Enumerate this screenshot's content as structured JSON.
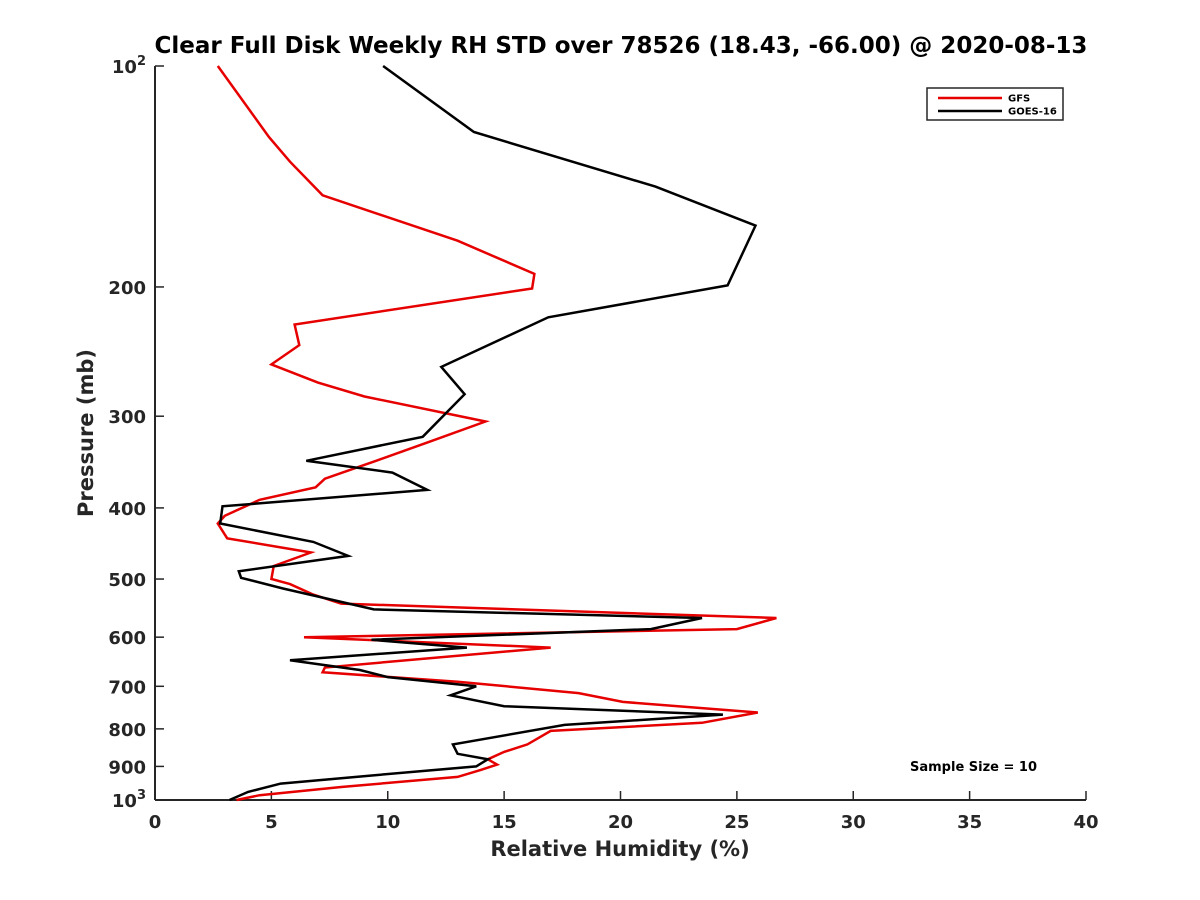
{
  "chart_data": {
    "type": "line",
    "title": "Clear Full Disk Weekly RH STD over 78526 (18.43, -66.00) @ 2020-08-13",
    "xlabel": "Relative Humidity (%)",
    "ylabel": "Pressure (mb)",
    "xlim": [
      0,
      40
    ],
    "ylim": [
      100,
      1000
    ],
    "yscale": "log",
    "y_reversed": true,
    "grid": false,
    "legend_position": "top-right",
    "x_ticks": [
      "0",
      "5",
      "10",
      "15",
      "20",
      "25",
      "30",
      "35",
      "40"
    ],
    "y_ticks": [
      {
        "value": 100,
        "base": "10",
        "exp": "2"
      },
      {
        "value": 200,
        "label": "200"
      },
      {
        "value": 300,
        "label": "300"
      },
      {
        "value": 400,
        "label": "400"
      },
      {
        "value": 500,
        "label": "500"
      },
      {
        "value": 600,
        "label": "600"
      },
      {
        "value": 700,
        "label": "700"
      },
      {
        "value": 800,
        "label": "800"
      },
      {
        "value": 900,
        "label": "900"
      },
      {
        "value": 1000,
        "base": "10",
        "exp": "3"
      }
    ],
    "annotation": "Sample Size = 10",
    "series": [
      {
        "name": "GFS",
        "color": "#e60000",
        "points": [
          [
            2.7,
            100
          ],
          [
            4.9,
            125
          ],
          [
            5.8,
            135
          ],
          [
            7.2,
            150
          ],
          [
            13.0,
            173
          ],
          [
            16.3,
            192
          ],
          [
            16.2,
            201
          ],
          [
            6.0,
            225
          ],
          [
            6.2,
            240
          ],
          [
            5.0,
            255
          ],
          [
            7.0,
            270
          ],
          [
            9.0,
            282
          ],
          [
            14.2,
            305
          ],
          [
            11.8,
            325
          ],
          [
            9.5,
            345
          ],
          [
            7.3,
            365
          ],
          [
            6.9,
            375
          ],
          [
            4.5,
            390
          ],
          [
            3.0,
            410
          ],
          [
            2.7,
            420
          ],
          [
            3.1,
            440
          ],
          [
            6.7,
            460
          ],
          [
            5.1,
            480
          ],
          [
            5.0,
            500
          ],
          [
            5.8,
            508
          ],
          [
            6.8,
            525
          ],
          [
            8.0,
            540
          ],
          [
            26.7,
            565
          ],
          [
            25.0,
            585
          ],
          [
            6.4,
            600
          ],
          [
            17.0,
            620
          ],
          [
            7.3,
            660
          ],
          [
            7.2,
            670
          ],
          [
            13.0,
            690
          ],
          [
            18.2,
            715
          ],
          [
            20.1,
            735
          ],
          [
            25.9,
            760
          ],
          [
            23.5,
            785
          ],
          [
            17.0,
            805
          ],
          [
            16.0,
            840
          ],
          [
            15.0,
            860
          ],
          [
            14.3,
            880
          ],
          [
            14.7,
            895
          ],
          [
            14.0,
            910
          ],
          [
            13.0,
            930
          ],
          [
            8.0,
            960
          ],
          [
            4.5,
            985
          ],
          [
            3.5,
            1000
          ]
        ]
      },
      {
        "name": "GOES-16",
        "color": "#000000",
        "points": [
          [
            9.8,
            100
          ],
          [
            13.7,
            123
          ],
          [
            21.5,
            146
          ],
          [
            25.8,
            165
          ],
          [
            24.6,
            199
          ],
          [
            16.9,
            220
          ],
          [
            12.3,
            257
          ],
          [
            13.3,
            280
          ],
          [
            11.5,
            320
          ],
          [
            6.5,
            345
          ],
          [
            10.2,
            358
          ],
          [
            11.7,
            378
          ],
          [
            2.9,
            398
          ],
          [
            2.8,
            420
          ],
          [
            6.8,
            445
          ],
          [
            8.3,
            465
          ],
          [
            3.6,
            488
          ],
          [
            3.7,
            498
          ],
          [
            5.5,
            515
          ],
          [
            9.4,
            550
          ],
          [
            23.5,
            565
          ],
          [
            21.3,
            585
          ],
          [
            9.3,
            605
          ],
          [
            13.4,
            620
          ],
          [
            5.8,
            645
          ],
          [
            8.8,
            665
          ],
          [
            10.0,
            680
          ],
          [
            13.8,
            700
          ],
          [
            12.7,
            720
          ],
          [
            15.0,
            745
          ],
          [
            24.4,
            765
          ],
          [
            17.6,
            790
          ],
          [
            12.8,
            840
          ],
          [
            13.0,
            865
          ],
          [
            14.3,
            880
          ],
          [
            13.8,
            900
          ],
          [
            9.5,
            925
          ],
          [
            5.4,
            950
          ],
          [
            4.0,
            975
          ],
          [
            3.2,
            1000
          ]
        ]
      }
    ]
  }
}
